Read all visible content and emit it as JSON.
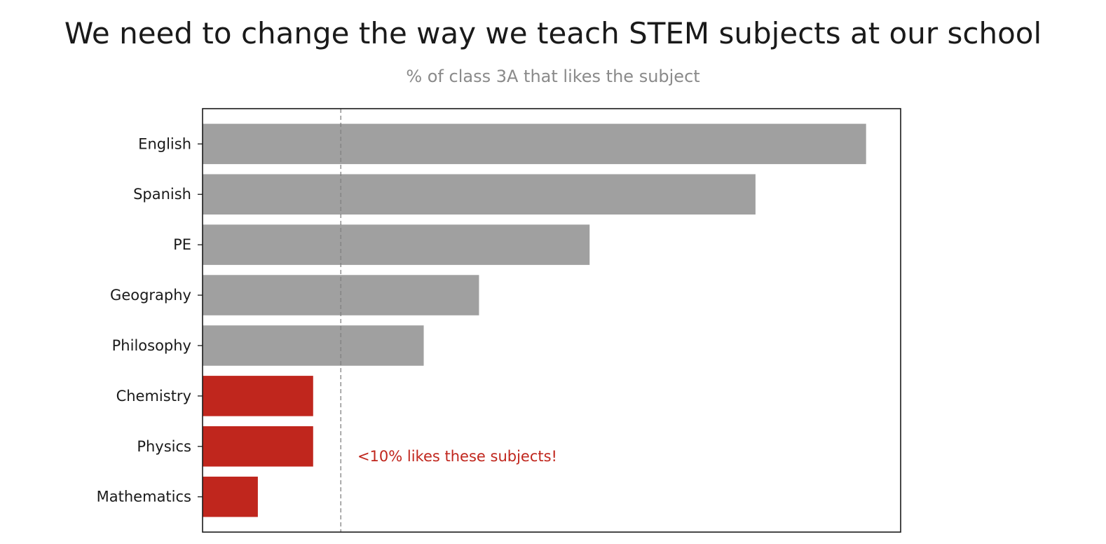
{
  "chart_data": {
    "type": "bar",
    "orientation": "horizontal",
    "title": "We need to change the way we teach STEM subjects at our school",
    "subtitle": "% of class 3A that likes the subject",
    "xlabel": "",
    "ylabel": "",
    "categories": [
      "English",
      "Spanish",
      "PE",
      "Geography",
      "Philosophy",
      "Chemistry",
      "Physics",
      "Mathematics"
    ],
    "values": [
      48,
      40,
      28,
      20,
      16,
      8,
      8,
      4
    ],
    "highlighted": [
      false,
      false,
      false,
      false,
      false,
      true,
      true,
      true
    ],
    "xlim": [
      0,
      50.5
    ],
    "x_ticks_visible": false,
    "grid": false,
    "legend": "none",
    "reference_line": {
      "x": 10,
      "style": "dashed"
    },
    "annotation": {
      "text": "<10% likes these subjects!",
      "x": 11,
      "category_position": 6.2
    },
    "colors": {
      "default_bar": "#a0a0a0",
      "highlight_bar": "#c0261d",
      "annotation": "#c0261d",
      "reference_line": "#808080",
      "axes": "#1a1a1a"
    }
  }
}
